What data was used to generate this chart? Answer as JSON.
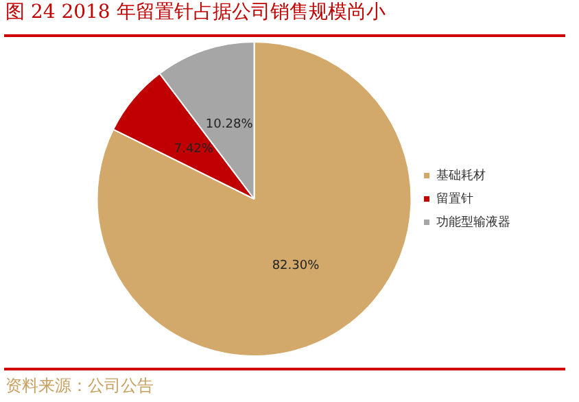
{
  "chart_data": {
    "type": "pie",
    "title": "图 24 2018 年留置针占据公司销售规模尚小",
    "categories": [
      "基础耗材",
      "留置针",
      "功能型输液器"
    ],
    "values": [
      82.3,
      7.42,
      10.28
    ],
    "value_labels": [
      "82.30%",
      "7.42%",
      "10.28%"
    ],
    "colors": [
      "#d2a96a",
      "#c00000",
      "#a6a6a6"
    ],
    "legend": "right",
    "annotations": [
      "资料来源：公司公告"
    ]
  }
}
